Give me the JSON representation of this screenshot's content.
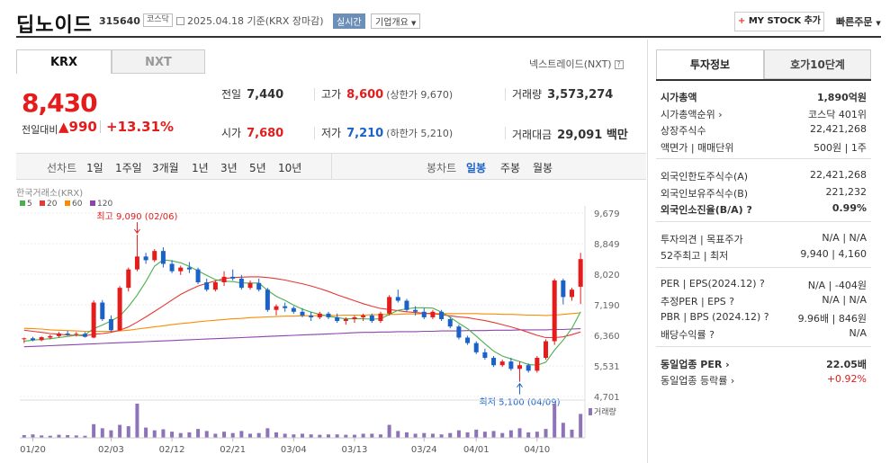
{
  "header": {
    "title": "딥노이드",
    "code": "315640",
    "market": "코스닥",
    "date": "2025.04.18",
    "basis": "기준(KRX 장마감)",
    "realtime": "실시간",
    "company_info": "기업개요",
    "mystock_plus": "+",
    "mystock": "MY STOCK 추가",
    "quick_order": "빠른주문"
  },
  "tabs": {
    "krx": "KRX",
    "nxt": "NXT",
    "nxt_link": "넥스트레이드(NXT)"
  },
  "price": {
    "current": "8,430",
    "change_label": "전일대비",
    "change_amount": "▲990",
    "change_rate": "+13.31%"
  },
  "stats": {
    "prev_label": "전일",
    "prev": "7,440",
    "high_label": "고가",
    "high": "8,600",
    "high_limit": "(상한가 9,670)",
    "volume_label": "거래량",
    "volume": "3,573,274",
    "open_label": "시가",
    "open": "7,680",
    "low_label": "저가",
    "low": "7,210",
    "low_limit": "(하한가 5,210)",
    "value_label": "거래대금",
    "value": "29,091 백만"
  },
  "toolbar": {
    "line_chart": "선차트",
    "periods": [
      "1일",
      "1주일",
      "3개월",
      "1년",
      "3년",
      "5년",
      "10년"
    ],
    "candle_chart": "봉차트",
    "candles": [
      "일봉",
      "주봉",
      "월봉"
    ]
  },
  "chart_data": {
    "type": "candlestick",
    "source": "한국거래소(KRX)",
    "ma_legend": [
      {
        "name": "5",
        "color": "#4caf50"
      },
      {
        "name": "20",
        "color": "#e53935"
      },
      {
        "name": "60",
        "color": "#fb8c00"
      },
      {
        "name": "120",
        "color": "#8e44ad"
      }
    ],
    "y_ticks": [
      "9,679",
      "8,849",
      "8,020",
      "7,190",
      "6,360",
      "5,531",
      "4,701"
    ],
    "ylim": [
      4701,
      9679
    ],
    "x_ticks": [
      "01/20",
      "02/03",
      "02/12",
      "02/21",
      "03/04",
      "03/13",
      "03/24",
      "04/01",
      "04/10"
    ],
    "x_tick_index": [
      1,
      10,
      17,
      24,
      31,
      38,
      46,
      52,
      59
    ],
    "high_annotation": "최고 9,090 (02/06)",
    "low_annotation": "최저 5,100 (04/09)",
    "volume_label": "거래량",
    "candles": [
      [
        6260,
        6300,
        6150,
        6280
      ],
      [
        6280,
        6320,
        6200,
        6230
      ],
      [
        6230,
        6330,
        6200,
        6310
      ],
      [
        6300,
        6380,
        6250,
        6340
      ],
      [
        6340,
        6450,
        6300,
        6410
      ],
      [
        6410,
        6480,
        6350,
        6380
      ],
      [
        6380,
        6450,
        6330,
        6400
      ],
      [
        6400,
        6450,
        6300,
        6320
      ],
      [
        6300,
        7310,
        6280,
        7250
      ],
      [
        7250,
        7320,
        6750,
        6800
      ],
      [
        6800,
        6900,
        6450,
        6500
      ],
      [
        6500,
        7700,
        6480,
        7650
      ],
      [
        7650,
        8200,
        7550,
        8150
      ],
      [
        8150,
        9090,
        8100,
        8500
      ],
      [
        8500,
        8600,
        8300,
        8400
      ],
      [
        8400,
        8700,
        8350,
        8650
      ],
      [
        8650,
        8750,
        8200,
        8300
      ],
      [
        8300,
        8400,
        8050,
        8100
      ],
      [
        8100,
        8250,
        8000,
        8200
      ],
      [
        8200,
        8350,
        8050,
        8150
      ],
      [
        8150,
        8200,
        7750,
        7800
      ],
      [
        7800,
        7900,
        7550,
        7600
      ],
      [
        7600,
        7850,
        7550,
        7800
      ],
      [
        7800,
        8100,
        7700,
        7950
      ],
      [
        7950,
        8150,
        7850,
        7900
      ],
      [
        7900,
        8000,
        7600,
        7650
      ],
      [
        7650,
        7850,
        7600,
        7780
      ],
      [
        7780,
        7900,
        7550,
        7600
      ],
      [
        7600,
        7650,
        7000,
        7050
      ],
      [
        7050,
        7200,
        6900,
        7150
      ],
      [
        7150,
        7250,
        7000,
        7100
      ],
      [
        7100,
        7150,
        6950,
        7000
      ],
      [
        7000,
        7100,
        6850,
        6900
      ],
      [
        6900,
        7000,
        6750,
        6850
      ],
      [
        6850,
        7000,
        6800,
        6950
      ],
      [
        6950,
        7000,
        6800,
        6850
      ],
      [
        6850,
        6950,
        6700,
        6750
      ],
      [
        6750,
        6850,
        6650,
        6800
      ],
      [
        6800,
        6900,
        6700,
        6850
      ],
      [
        6850,
        6950,
        6750,
        6900
      ],
      [
        6900,
        6950,
        6700,
        6750
      ],
      [
        6750,
        7000,
        6700,
        6950
      ],
      [
        6950,
        7450,
        6900,
        7400
      ],
      [
        7400,
        7600,
        7250,
        7300
      ],
      [
        7300,
        7350,
        7000,
        7050
      ],
      [
        7050,
        7150,
        6900,
        7000
      ],
      [
        7000,
        7100,
        6800,
        6850
      ],
      [
        6850,
        7050,
        6800,
        7000
      ],
      [
        7000,
        7050,
        6750,
        6800
      ],
      [
        6800,
        6850,
        6550,
        6600
      ],
      [
        6600,
        6650,
        6250,
        6300
      ],
      [
        6300,
        6350,
        6100,
        6150
      ],
      [
        6150,
        6200,
        5850,
        5900
      ],
      [
        5900,
        6000,
        5700,
        5750
      ],
      [
        5750,
        5800,
        5500,
        5550
      ],
      [
        5550,
        5700,
        5500,
        5650
      ],
      [
        5650,
        5750,
        5400,
        5450
      ],
      [
        5450,
        5650,
        5100,
        5550
      ],
      [
        5550,
        5600,
        5350,
        5400
      ],
      [
        5400,
        5800,
        5350,
        5750
      ],
      [
        5750,
        6250,
        5700,
        6200
      ],
      [
        6200,
        7900,
        6100,
        7850
      ],
      [
        7850,
        7900,
        7200,
        7400
      ],
      [
        7400,
        7650,
        7300,
        7600
      ],
      [
        7680,
        8600,
        7210,
        8430
      ]
    ],
    "ma5": [
      6200,
      6230,
      6250,
      6270,
      6300,
      6330,
      6360,
      6380,
      6540,
      6640,
      6750,
      6880,
      7140,
      7450,
      7820,
      8240,
      8410,
      8380,
      8330,
      8230,
      8110,
      7990,
      7870,
      7830,
      7820,
      7780,
      7780,
      7780,
      7580,
      7420,
      7310,
      7180,
      7070,
      6990,
      6930,
      6880,
      6840,
      6810,
      6810,
      6810,
      6800,
      6810,
      6930,
      7040,
      7080,
      7110,
      7110,
      7100,
      6990,
      6850,
      6690,
      6540,
      6340,
      6130,
      5930,
      5800,
      5720,
      5650,
      5570,
      5550,
      5630,
      5960,
      6230,
      6550,
      7000
    ],
    "ma20": [
      6500,
      6470,
      6440,
      6410,
      6390,
      6370,
      6360,
      6350,
      6390,
      6410,
      6440,
      6500,
      6590,
      6720,
      6860,
      7010,
      7160,
      7320,
      7470,
      7590,
      7700,
      7770,
      7840,
      7900,
      7930,
      7940,
      7950,
      7950,
      7930,
      7900,
      7860,
      7810,
      7760,
      7700,
      7630,
      7550,
      7460,
      7380,
      7300,
      7220,
      7150,
      7090,
      7060,
      7030,
      7000,
      6980,
      6960,
      6950,
      6920,
      6890,
      6860,
      6840,
      6800,
      6760,
      6710,
      6650,
      6590,
      6520,
      6440,
      6360,
      6300,
      6300,
      6320,
      6380,
      6450
    ],
    "ma60": [
      6550,
      6540,
      6530,
      6510,
      6500,
      6490,
      6480,
      6470,
      6470,
      6470,
      6470,
      6480,
      6500,
      6530,
      6560,
      6590,
      6620,
      6650,
      6680,
      6700,
      6730,
      6750,
      6770,
      6790,
      6810,
      6820,
      6840,
      6850,
      6860,
      6870,
      6880,
      6880,
      6890,
      6890,
      6900,
      6900,
      6900,
      6910,
      6910,
      6910,
      6920,
      6920,
      6930,
      6930,
      6940,
      6940,
      6950,
      6950,
      6950,
      6950,
      6950,
      6950,
      6950,
      6940,
      6940,
      6930,
      6930,
      6920,
      6910,
      6910,
      6900,
      6910,
      6930,
      6950,
      6970
    ],
    "ma120": [
      6050,
      6060,
      6070,
      6080,
      6090,
      6100,
      6110,
      6120,
      6130,
      6140,
      6150,
      6160,
      6170,
      6180,
      6190,
      6200,
      6210,
      6220,
      6230,
      6240,
      6250,
      6260,
      6270,
      6280,
      6290,
      6300,
      6310,
      6320,
      6330,
      6340,
      6350,
      6360,
      6370,
      6380,
      6390,
      6400,
      6410,
      6420,
      6430,
      6440,
      6440,
      6450,
      6450,
      6460,
      6460,
      6460,
      6470,
      6470,
      6480,
      6480,
      6480,
      6490,
      6490,
      6490,
      6500,
      6500,
      6500,
      6510,
      6510,
      6510,
      6510,
      6520,
      6520,
      6530,
      6540
    ],
    "volume": [
      8,
      10,
      7,
      6,
      9,
      8,
      7,
      6,
      40,
      28,
      22,
      38,
      34,
      100,
      30,
      22,
      25,
      18,
      14,
      16,
      26,
      20,
      12,
      18,
      14,
      20,
      12,
      14,
      28,
      16,
      12,
      10,
      12,
      10,
      9,
      10,
      10,
      9,
      9,
      12,
      12,
      10,
      38,
      20,
      16,
      12,
      14,
      12,
      10,
      14,
      22,
      16,
      24,
      18,
      20,
      14,
      22,
      28,
      16,
      18,
      26,
      100,
      44,
      24,
      70
    ]
  },
  "right_panel": {
    "tab_invest": "투자정보",
    "tab_orderbook": "호가10단계",
    "sections": [
      [
        {
          "k": "시가총액",
          "v": "1,890억원",
          "bold": true
        },
        {
          "k": "시가총액순위 ›",
          "v": "코스닥 401위"
        },
        {
          "k": "상장주식수",
          "v": "22,421,268"
        },
        {
          "k": "액면가 | 매매단위",
          "v": "500원 | 1주"
        }
      ],
      [
        {
          "k": "외국인한도주식수(A)",
          "v": "22,421,268"
        },
        {
          "k": "외국인보유주식수(B)",
          "v": "221,232"
        },
        {
          "k": "외국인소진율(B/A) ?",
          "v": "0.99%",
          "bold": true
        }
      ],
      [
        {
          "k": "투자의견 | 목표주가",
          "v": "N/A | N/A"
        },
        {
          "k": "52주최고 | 최저",
          "v": "9,940 | 4,160"
        }
      ],
      [
        {
          "k": "PER | EPS(2024.12) ?",
          "v": "N/A | -404원"
        },
        {
          "k": "추정PER | EPS ?",
          "v": "N/A | N/A"
        },
        {
          "k": "PBR | BPS (2024.12) ?",
          "v": "9.96배 | 846원"
        },
        {
          "k": "배당수익률 ?",
          "v": "N/A"
        }
      ],
      [
        {
          "k": "동일업종 PER ›",
          "v": "22.05배",
          "bold": true
        },
        {
          "k": "동일업종 등락률 ›",
          "v": "+0.92%",
          "red": true
        }
      ]
    ]
  }
}
